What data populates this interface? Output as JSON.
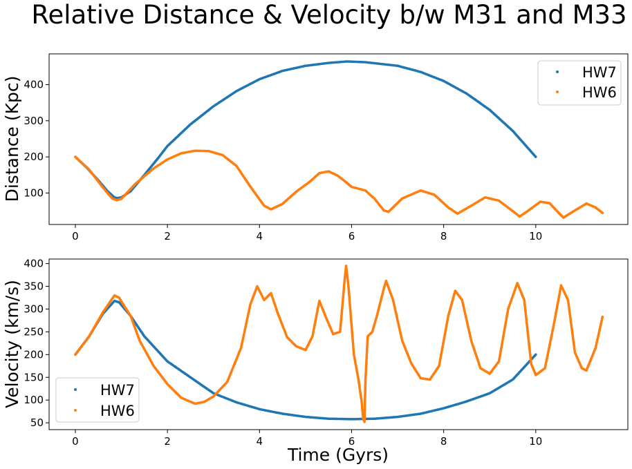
{
  "figure": {
    "title": "Relative Distance & Velocity b/w M31 and M33"
  },
  "colors": {
    "hw7": "#1f77b4",
    "hw6": "#ff7f0e"
  },
  "chart_data": [
    {
      "type": "scatter",
      "title": "",
      "xlabel": "",
      "ylabel": "Distance (Kpc)",
      "xlim": [
        -0.57,
        12.0
      ],
      "ylim": [
        13,
        485
      ],
      "xticks": [
        "0",
        "2",
        "4",
        "6",
        "8",
        "10"
      ],
      "yticks": [
        "100",
        "200",
        "300",
        "400"
      ],
      "legend": "upper right",
      "series": [
        {
          "name": "HW7",
          "color": "#1f77b4",
          "points": [
            [
              0.0,
              200
            ],
            [
              0.25,
              170
            ],
            [
              0.5,
              135
            ],
            [
              0.7,
              105
            ],
            [
              0.85,
              88
            ],
            [
              0.9,
              86
            ],
            [
              1.0,
              88
            ],
            [
              1.2,
              105
            ],
            [
              1.5,
              150
            ],
            [
              1.8,
              197
            ],
            [
              2.0,
              230
            ],
            [
              2.5,
              290
            ],
            [
              3.0,
              340
            ],
            [
              3.5,
              382
            ],
            [
              4.0,
              415
            ],
            [
              4.5,
              438
            ],
            [
              5.0,
              452
            ],
            [
              5.5,
              460
            ],
            [
              5.9,
              464
            ],
            [
              6.3,
              462
            ],
            [
              7.0,
              452
            ],
            [
              7.5,
              435
            ],
            [
              8.0,
              410
            ],
            [
              8.5,
              375
            ],
            [
              9.0,
              330
            ],
            [
              9.5,
              272
            ],
            [
              10.0,
              200
            ]
          ]
        },
        {
          "name": "HW6",
          "color": "#ff7f0e",
          "points": [
            [
              0.0,
              200
            ],
            [
              0.3,
              165
            ],
            [
              0.6,
              115
            ],
            [
              0.8,
              85
            ],
            [
              0.9,
              80
            ],
            [
              1.0,
              84
            ],
            [
              1.3,
              125
            ],
            [
              1.7,
              168
            ],
            [
              2.0,
              193
            ],
            [
              2.3,
              210
            ],
            [
              2.6,
              217
            ],
            [
              2.9,
              216
            ],
            [
              3.2,
              205
            ],
            [
              3.5,
              175
            ],
            [
              3.8,
              118
            ],
            [
              4.1,
              65
            ],
            [
              4.25,
              55
            ],
            [
              4.5,
              70
            ],
            [
              4.8,
              104
            ],
            [
              5.1,
              132
            ],
            [
              5.3,
              155
            ],
            [
              5.5,
              160
            ],
            [
              5.7,
              148
            ],
            [
              5.9,
              128
            ],
            [
              6.0,
              117
            ],
            [
              6.3,
              107
            ],
            [
              6.5,
              84
            ],
            [
              6.7,
              52
            ],
            [
              6.8,
              48
            ],
            [
              7.1,
              85
            ],
            [
              7.5,
              107
            ],
            [
              7.8,
              95
            ],
            [
              8.1,
              60
            ],
            [
              8.3,
              43
            ],
            [
              8.6,
              65
            ],
            [
              8.9,
              88
            ],
            [
              9.2,
              79
            ],
            [
              9.5,
              50
            ],
            [
              9.65,
              35
            ],
            [
              9.8,
              48
            ],
            [
              10.1,
              76
            ],
            [
              10.3,
              72
            ],
            [
              10.5,
              45
            ],
            [
              10.6,
              32
            ],
            [
              10.8,
              48
            ],
            [
              11.1,
              71
            ],
            [
              11.3,
              60
            ],
            [
              11.45,
              45
            ]
          ]
        }
      ]
    },
    {
      "type": "scatter",
      "title": "",
      "xlabel": "Time (Gyrs)",
      "ylabel": "Velocity (km/s)",
      "xlim": [
        -0.57,
        12.0
      ],
      "ylim": [
        35,
        410
      ],
      "xticks": [
        "0",
        "2",
        "4",
        "6",
        "8",
        "10"
      ],
      "yticks": [
        "50",
        "100",
        "150",
        "200",
        "250",
        "300",
        "350",
        "400"
      ],
      "legend": "lower left",
      "series": [
        {
          "name": "HW7",
          "color": "#1f77b4",
          "points": [
            [
              0.0,
              200
            ],
            [
              0.3,
              240
            ],
            [
              0.6,
              290
            ],
            [
              0.85,
              318
            ],
            [
              0.95,
              315
            ],
            [
              1.2,
              285
            ],
            [
              1.5,
              240
            ],
            [
              2.0,
              185
            ],
            [
              2.5,
              150
            ],
            [
              3.0,
              115
            ],
            [
              3.5,
              95
            ],
            [
              4.0,
              80
            ],
            [
              4.5,
              70
            ],
            [
              5.0,
              63
            ],
            [
              5.5,
              59
            ],
            [
              6.0,
              58
            ],
            [
              6.5,
              59
            ],
            [
              7.0,
              63
            ],
            [
              7.5,
              70
            ],
            [
              8.0,
              82
            ],
            [
              8.5,
              97
            ],
            [
              9.0,
              115
            ],
            [
              9.5,
              145
            ],
            [
              10.0,
              200
            ]
          ]
        },
        {
          "name": "HW6",
          "color": "#ff7f0e",
          "points": [
            [
              0.0,
              200
            ],
            [
              0.3,
              240
            ],
            [
              0.6,
              293
            ],
            [
              0.85,
              330
            ],
            [
              0.95,
              325
            ],
            [
              1.2,
              285
            ],
            [
              1.4,
              230
            ],
            [
              1.7,
              175
            ],
            [
              2.0,
              135
            ],
            [
              2.3,
              105
            ],
            [
              2.6,
              92
            ],
            [
              2.8,
              96
            ],
            [
              3.0,
              108
            ],
            [
              3.3,
              140
            ],
            [
              3.6,
              215
            ],
            [
              3.8,
              310
            ],
            [
              3.95,
              350
            ],
            [
              4.1,
              320
            ],
            [
              4.25,
              335
            ],
            [
              4.4,
              290
            ],
            [
              4.6,
              238
            ],
            [
              4.8,
              218
            ],
            [
              5.0,
              210
            ],
            [
              5.15,
              240
            ],
            [
              5.3,
              318
            ],
            [
              5.45,
              280
            ],
            [
              5.6,
              245
            ],
            [
              5.75,
              250
            ],
            [
              5.85,
              365
            ],
            [
              5.88,
              395
            ],
            [
              5.93,
              352
            ],
            [
              6.05,
              200
            ],
            [
              6.15,
              145
            ],
            [
              6.22,
              95
            ],
            [
              6.25,
              60
            ],
            [
              6.28,
              52
            ],
            [
              6.3,
              140
            ],
            [
              6.35,
              240
            ],
            [
              6.45,
              250
            ],
            [
              6.55,
              285
            ],
            [
              6.7,
              345
            ],
            [
              6.75,
              362
            ],
            [
              6.9,
              320
            ],
            [
              7.1,
              230
            ],
            [
              7.3,
              180
            ],
            [
              7.5,
              148
            ],
            [
              7.7,
              145
            ],
            [
              7.9,
              175
            ],
            [
              8.1,
              285
            ],
            [
              8.25,
              340
            ],
            [
              8.4,
              320
            ],
            [
              8.6,
              230
            ],
            [
              8.8,
              170
            ],
            [
              9.0,
              158
            ],
            [
              9.2,
              185
            ],
            [
              9.4,
              300
            ],
            [
              9.6,
              357
            ],
            [
              9.75,
              320
            ],
            [
              9.9,
              180
            ],
            [
              10.0,
              155
            ],
            [
              10.2,
              170
            ],
            [
              10.4,
              270
            ],
            [
              10.55,
              352
            ],
            [
              10.7,
              320
            ],
            [
              10.85,
              205
            ],
            [
              11.0,
              170
            ],
            [
              11.1,
              165
            ],
            [
              11.3,
              215
            ],
            [
              11.45,
              283
            ]
          ]
        }
      ]
    }
  ]
}
